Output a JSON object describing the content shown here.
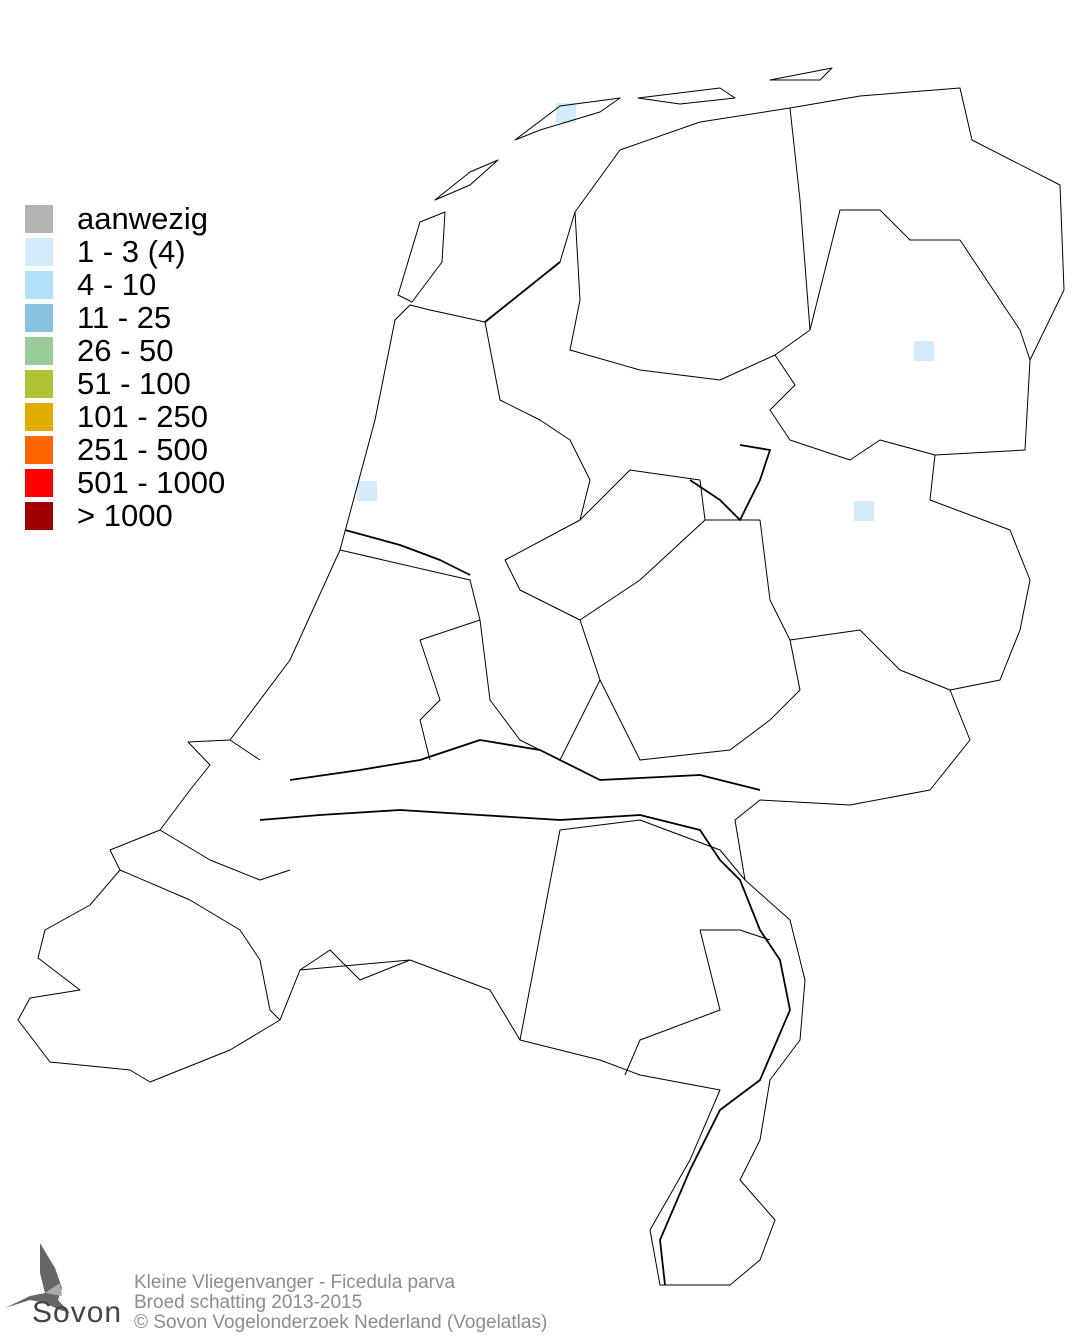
{
  "legend": {
    "items": [
      {
        "label": "aanwezig",
        "color": "#b3b3b3"
      },
      {
        "label": "1 - 3 (4)",
        "color": "#d4ecfa"
      },
      {
        "label": "4 - 10",
        "color": "#b2e2fb"
      },
      {
        "label": "11 - 25",
        "color": "#89c0de"
      },
      {
        "label": "26 - 50",
        "color": "#99cc99"
      },
      {
        "label": "51 - 100",
        "color": "#b2c235"
      },
      {
        "label": "101 - 250",
        "color": "#e0ac00"
      },
      {
        "label": "251 - 500",
        "color": "#ff6600"
      },
      {
        "label": "501 - 1000",
        "color": "#ff0000"
      },
      {
        "label": "> 1000",
        "color": "#a00000"
      }
    ]
  },
  "map": {
    "region": "Nederland",
    "occupied_cells": [
      {
        "location": "Terschelling",
        "class": "1 - 3 (4)",
        "color": "#d4ecfa"
      },
      {
        "location": "Noord-Holland coast",
        "class": "1 - 3 (4)",
        "color": "#d4ecfa"
      },
      {
        "location": "Drenthe",
        "class": "1 - 3 (4)",
        "color": "#d4ecfa"
      },
      {
        "location": "Overijssel",
        "class": "1 - 3 (4)",
        "color": "#d4ecfa"
      }
    ]
  },
  "footer": {
    "species": "Kleine Vliegenvanger - Ficedula parva",
    "subtitle": "Broed schatting 2013-2015",
    "copyright": "© Sovon Vogelonderzoek Nederland (Vogelatlas)"
  },
  "logo": {
    "text": "Sovon"
  }
}
